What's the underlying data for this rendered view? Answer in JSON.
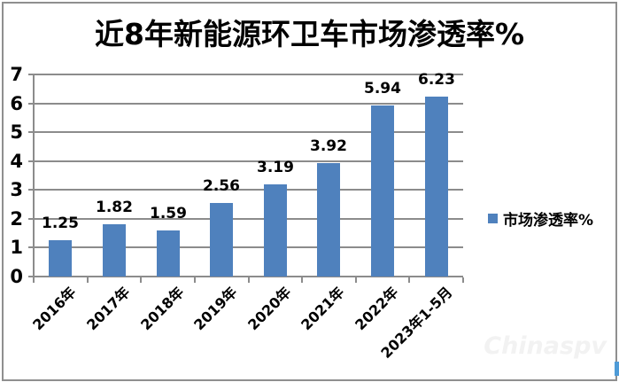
{
  "chart_data": {
    "type": "bar",
    "title": "近8年新能源环卫车市场渗透率%",
    "categories": [
      "2016年",
      "2017年",
      "2018年",
      "2019年",
      "2020年",
      "2021年",
      "2022年",
      "2023年1-5月"
    ],
    "series": [
      {
        "name": "市场渗透率%",
        "values": [
          1.25,
          1.82,
          1.59,
          2.56,
          3.19,
          3.92,
          5.94,
          6.23
        ]
      }
    ],
    "value_labels": [
      "1.25",
      "1.82",
      "1.59",
      "2.56",
      "3.19",
      "3.92",
      "5.94",
      "6.23"
    ],
    "xlabel": "",
    "ylabel": "",
    "ylim": [
      0,
      7
    ],
    "yticks": [
      0,
      1,
      2,
      3,
      4,
      5,
      6,
      7
    ],
    "grid": true,
    "legend_position": "right",
    "x_label_rotation_deg": -45,
    "bar_color": "#4F81BD",
    "gridline_color": "#8C8C8C",
    "text_color": "#000000"
  },
  "legend": {
    "label": "市场渗透率%",
    "swatch_color": "#4F81BD"
  },
  "watermark": {
    "text": "Chinaspv"
  }
}
